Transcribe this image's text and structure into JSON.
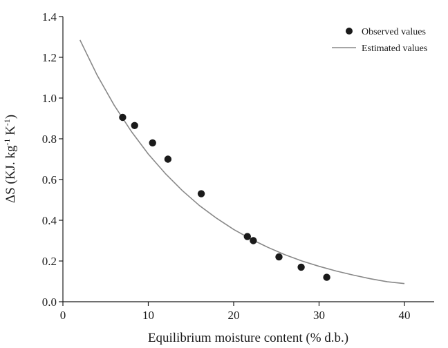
{
  "chart_data": {
    "type": "scatter",
    "xlabel": "Equilibrium moisture content (% d.b.)",
    "ylabel_parts": [
      "ΔS (KJ. kg",
      "-1",
      " K",
      "-1",
      ")"
    ],
    "xlim": [
      0,
      44
    ],
    "ylim": [
      0,
      1.4
    ],
    "xticks": [
      0,
      10,
      20,
      30,
      40
    ],
    "yticks": [
      0.0,
      0.2,
      0.4,
      0.6,
      0.8,
      1.0,
      1.2,
      1.4
    ],
    "xtick_labels": [
      "0",
      "10",
      "20",
      "30",
      "40"
    ],
    "ytick_labels": [
      "0.0",
      "0.2",
      "0.4",
      "0.6",
      "0.8",
      "1.0",
      "1.2",
      "1.4"
    ],
    "grid": false,
    "legend_position": "top-right",
    "series": [
      {
        "name": "Observed values",
        "kind": "scatter",
        "color": "#1a1a1a",
        "x": [
          7.0,
          8.4,
          10.5,
          12.3,
          16.2,
          21.6,
          22.3,
          25.3,
          27.9,
          30.9
        ],
        "y": [
          0.905,
          0.865,
          0.78,
          0.7,
          0.53,
          0.32,
          0.3,
          0.22,
          0.17,
          0.12
        ]
      },
      {
        "name": "Estimated values",
        "kind": "line",
        "color": "#888888",
        "x": [
          2,
          4,
          6,
          8,
          10,
          12,
          14,
          16,
          18,
          20,
          22,
          24,
          26,
          28,
          30,
          32,
          34,
          36,
          38,
          40
        ],
        "y": [
          1.285,
          1.113,
          0.965,
          0.837,
          0.725,
          0.629,
          0.545,
          0.472,
          0.41,
          0.355,
          0.308,
          0.267,
          0.231,
          0.2,
          0.174,
          0.151,
          0.131,
          0.113,
          0.098,
          0.089
        ]
      }
    ]
  }
}
